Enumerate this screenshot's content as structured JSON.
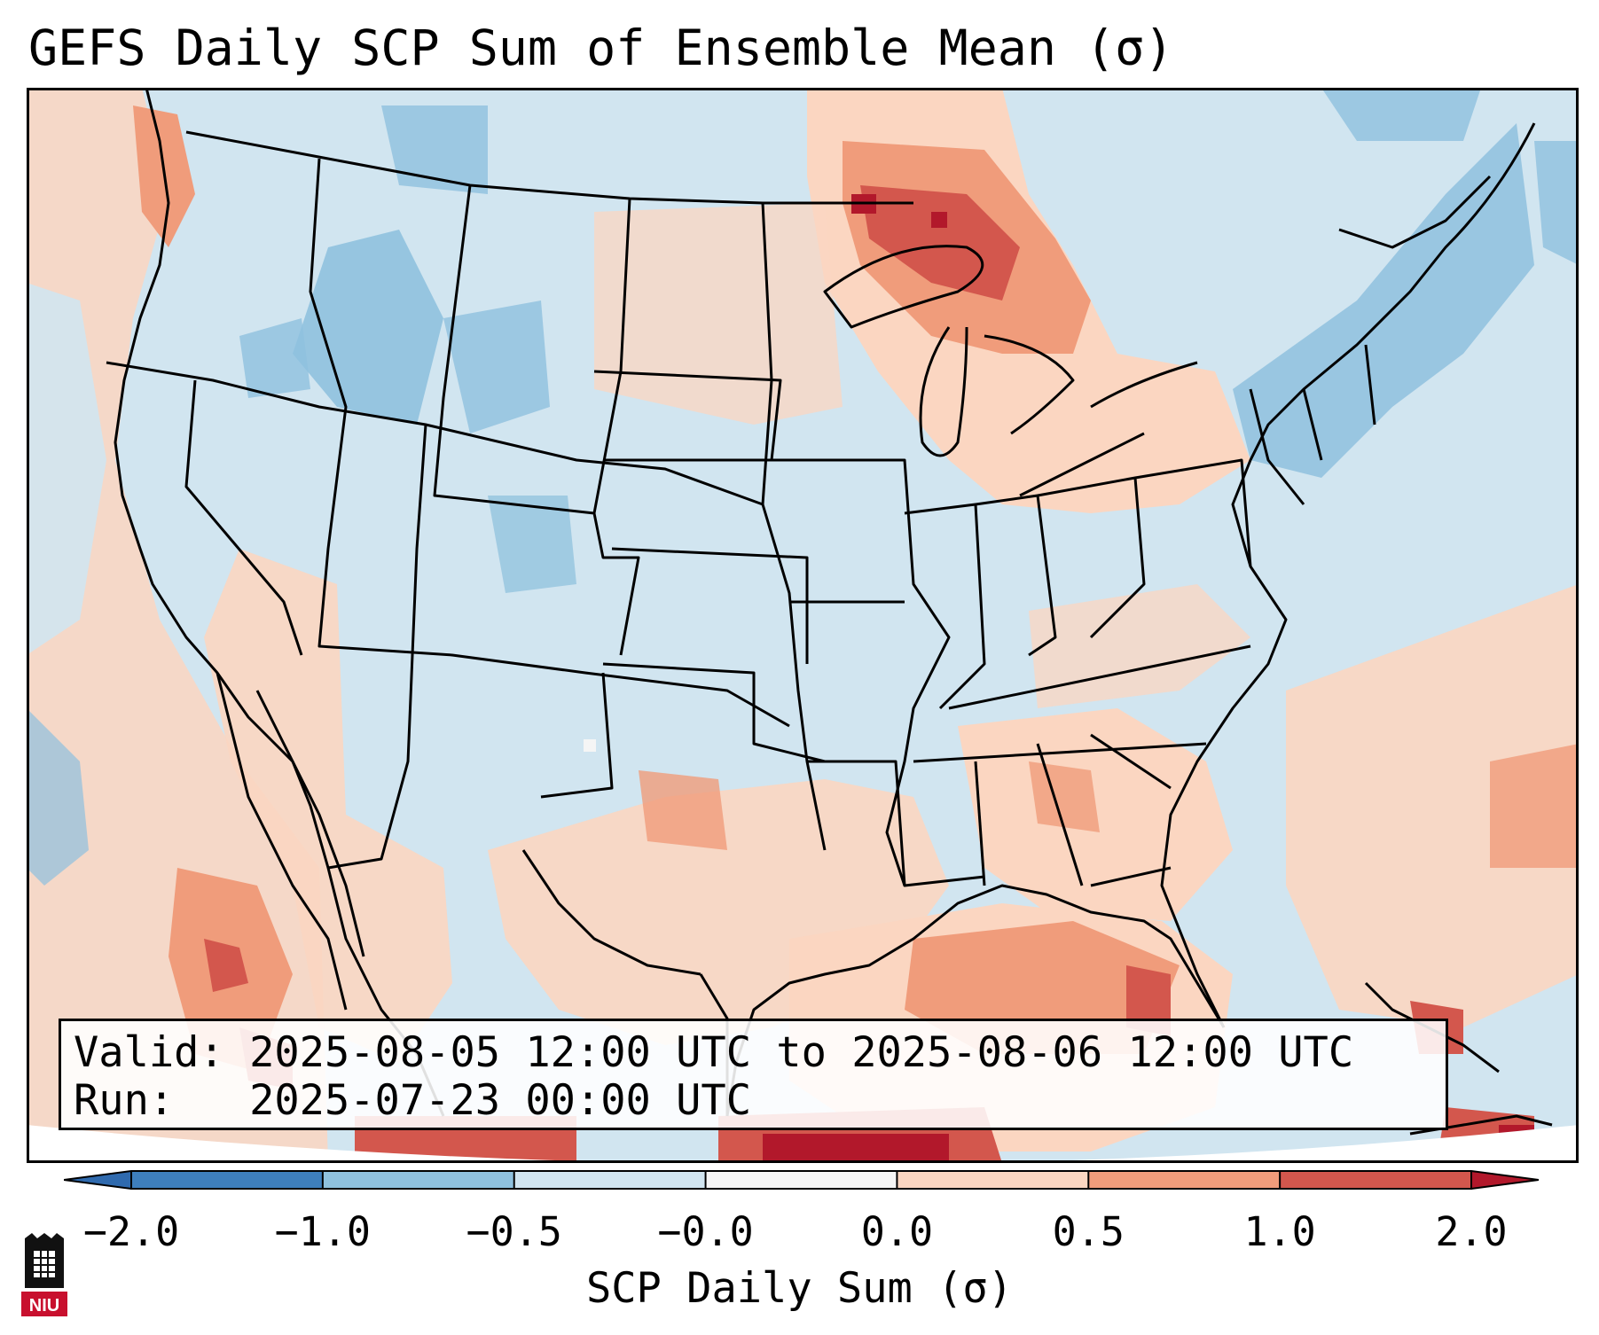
{
  "title": "GEFS Daily SCP Sum of Ensemble Mean (σ)",
  "info": {
    "valid_line": "Valid: 2025-08-05 12:00 UTC to 2025-08-06 12:00 UTC",
    "run_line": "Run:   2025-07-23 00:00 UTC"
  },
  "colorbar": {
    "label": "SCP Daily Sum (σ)",
    "ticks": [
      "−2.0",
      "−1.0",
      "−0.5",
      "−0.0",
      "0.0",
      "0.5",
      "1.0",
      "2.0"
    ],
    "colors": [
      "#3e7fbd",
      "#8fc1de",
      "#d1e5f0",
      "#f5f5f5",
      "#fbd6c1",
      "#f09c7b",
      "#d3574d"
    ],
    "under_color": "#2f6aae",
    "over_color": "#b2182b"
  },
  "map": {
    "region": "Continental United States",
    "ocean_color": "#d1e5f0"
  },
  "logo": {
    "text": "NIU",
    "icon": "niu-logo-icon"
  }
}
